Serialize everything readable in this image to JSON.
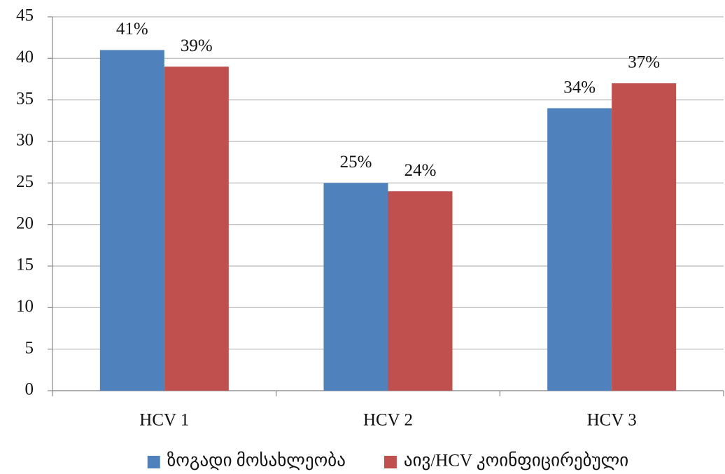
{
  "chart_data": {
    "type": "bar",
    "categories": [
      "HCV 1",
      "HCV 2",
      "HCV 3"
    ],
    "series": [
      {
        "name": "ზოგადი მოსახლეობა",
        "color": "#4f81bd",
        "values": [
          41,
          25,
          34
        ],
        "value_labels": [
          "41%",
          "25%",
          "34%"
        ]
      },
      {
        "name": "აივ/HCV კოინფიცირებული",
        "color": "#c0504d",
        "values": [
          39,
          24,
          37
        ],
        "value_labels": [
          "39%",
          "24%",
          "37%"
        ]
      }
    ],
    "ylim": [
      0,
      45
    ],
    "yticks": [
      0,
      5,
      10,
      15,
      20,
      25,
      30,
      35,
      40,
      45
    ],
    "grid": true,
    "legend": "bottom"
  }
}
